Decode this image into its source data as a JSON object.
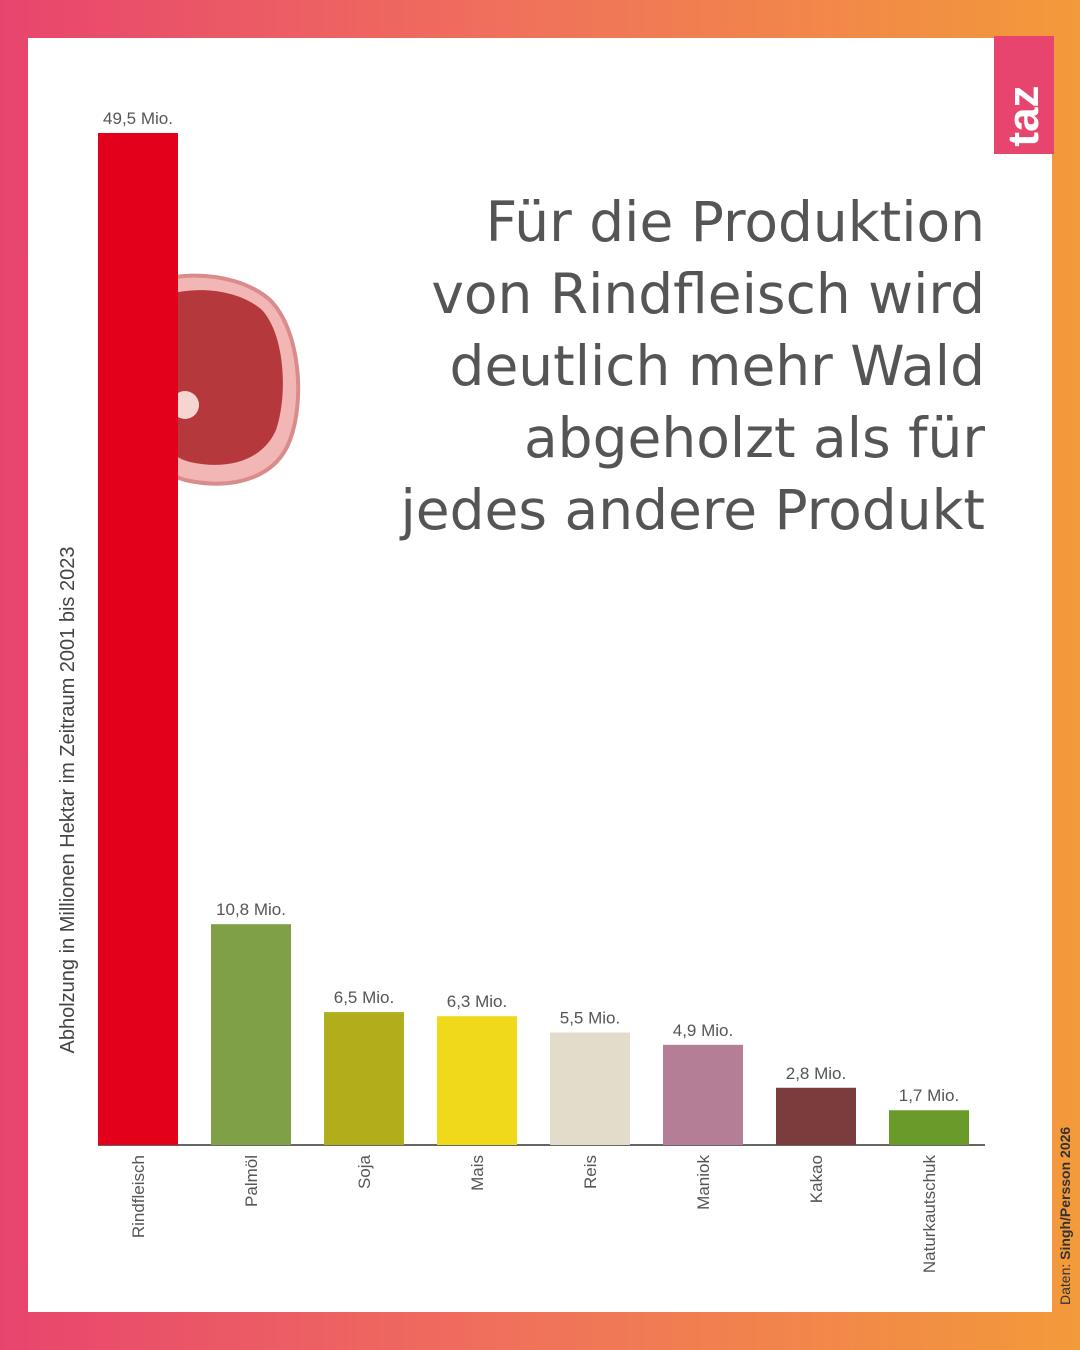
{
  "chart_data": {
    "type": "bar",
    "title": "Für die Produktion\nvon Rindfleisch wird\ndeutlich mehr Wald\nabgeholzt als für\njedes andere Produkt",
    "y_label": "Abholzung in Millionen Hektar im Zeitraum 2001 bis 2023",
    "categories": [
      "Rindfleisch",
      "Palmöl",
      "Soja",
      "Mais",
      "Reis",
      "Maniok",
      "Kakao",
      "Naturkautschuk"
    ],
    "values": [
      49.5,
      10.8,
      6.5,
      6.3,
      5.5,
      4.9,
      2.8,
      1.7
    ],
    "value_labels": [
      "49,5 Mio.",
      "10,8 Mio.",
      "6,5 Mio.",
      "6,3 Mio.",
      "5,5 Mio.",
      "4,9 Mio.",
      "2,8 Mio.",
      "1,7 Mio."
    ],
    "colors": [
      "#e3001b",
      "#7fa046",
      "#b0ae1a",
      "#f0d91a",
      "#e2dccb",
      "#b47e96",
      "#7a3c3c",
      "#6a9a2a"
    ],
    "ylim": [
      0,
      49.5
    ],
    "source_label": "Daten:",
    "source": "Singh/Persson 2026",
    "logo": "taz"
  }
}
